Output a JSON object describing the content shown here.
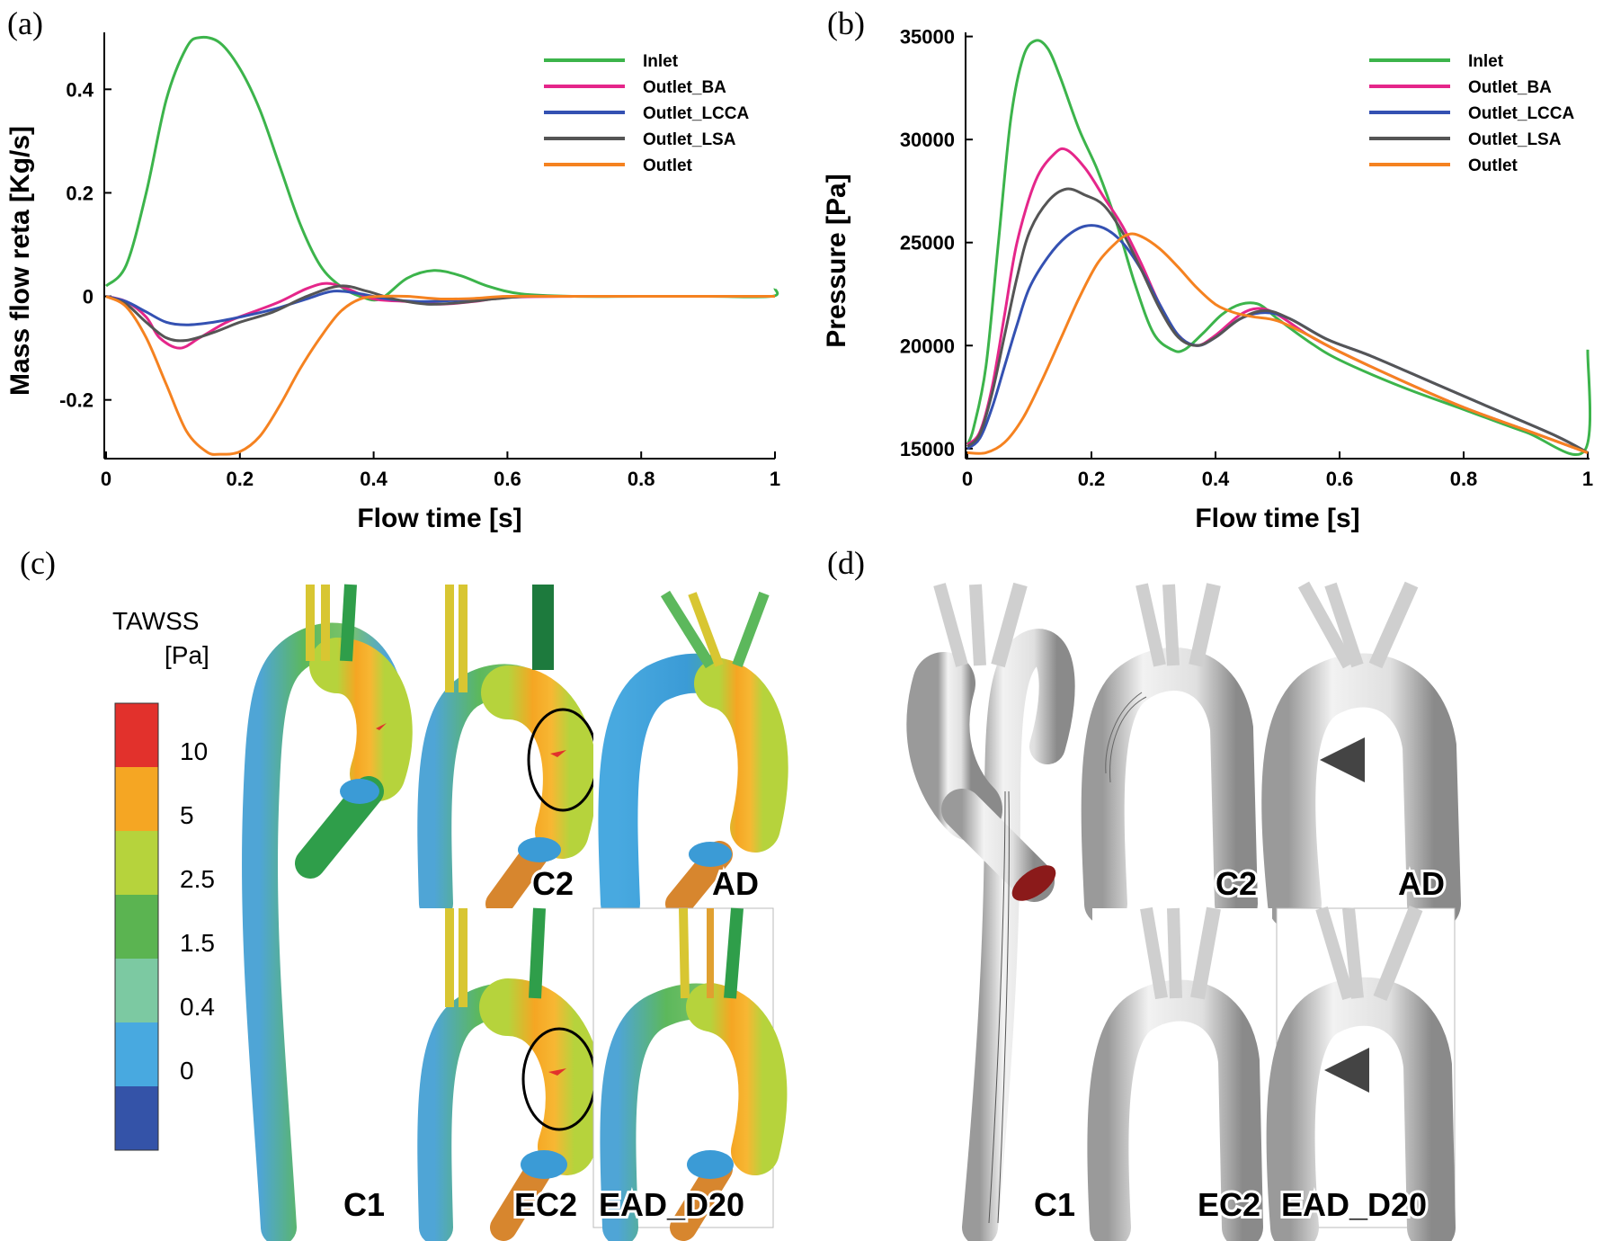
{
  "panels": {
    "a": "(a)",
    "b": "(b)",
    "c": "(c)",
    "d": "(d)"
  },
  "chart_data": [
    {
      "type": "line",
      "xlabel": "Flow time [s]",
      "ylabel": "Mass flow reta [Kg/s]",
      "xlim": [
        0,
        1
      ],
      "ylim": [
        -0.31,
        0.51
      ],
      "xticks": [
        0,
        0.2,
        0.4,
        0.6,
        0.8,
        1
      ],
      "xtick_labels": [
        "0",
        "0.2",
        "0.4",
        "0.6",
        "0.8",
        "1"
      ],
      "yticks": [
        -0.2,
        0,
        0.2,
        0.4
      ],
      "ytick_labels": [
        "-0.2",
        "0",
        "0.2",
        "0.4"
      ],
      "legend": "top-right",
      "series": [
        {
          "name": "Inlet",
          "color": "#3cb44b",
          "x": [
            0,
            0.03,
            0.06,
            0.09,
            0.12,
            0.14,
            0.17,
            0.2,
            0.23,
            0.26,
            0.29,
            0.32,
            0.35,
            0.38,
            0.41,
            0.45,
            0.49,
            0.53,
            0.57,
            0.62,
            0.7,
            0.8,
            0.9,
            0.995,
            1
          ],
          "y": [
            0.02,
            0.06,
            0.2,
            0.38,
            0.48,
            0.5,
            0.49,
            0.44,
            0.36,
            0.25,
            0.14,
            0.06,
            0.02,
            0.0,
            -0.005,
            0.035,
            0.05,
            0.04,
            0.02,
            0.005,
            0,
            0,
            0,
            0,
            0.015
          ]
        },
        {
          "name": "Outlet_BA",
          "color": "#e5268a",
          "x": [
            0,
            0.03,
            0.06,
            0.08,
            0.11,
            0.14,
            0.18,
            0.22,
            0.26,
            0.3,
            0.33,
            0.36,
            0.4,
            0.45,
            0.5,
            0.55,
            0.6,
            0.7,
            0.8,
            0.9,
            1
          ],
          "y": [
            0,
            -0.01,
            -0.04,
            -0.08,
            -0.1,
            -0.08,
            -0.05,
            -0.03,
            -0.01,
            0.015,
            0.025,
            0.015,
            -0.005,
            -0.01,
            -0.015,
            -0.01,
            -0.002,
            0,
            0,
            0,
            0
          ]
        },
        {
          "name": "Outlet_LCCA",
          "color": "#3451b2",
          "x": [
            0,
            0.03,
            0.06,
            0.09,
            0.12,
            0.16,
            0.2,
            0.25,
            0.3,
            0.34,
            0.38,
            0.42,
            0.47,
            0.52,
            0.57,
            0.62,
            0.7,
            0.8,
            0.9,
            1
          ],
          "y": [
            0,
            -0.01,
            -0.03,
            -0.05,
            -0.055,
            -0.05,
            -0.04,
            -0.025,
            -0.005,
            0.01,
            0.005,
            -0.005,
            -0.01,
            -0.008,
            -0.004,
            0,
            0,
            0,
            0,
            0
          ]
        },
        {
          "name": "Outlet_LSA",
          "color": "#555555",
          "x": [
            0,
            0.03,
            0.06,
            0.09,
            0.12,
            0.16,
            0.2,
            0.25,
            0.3,
            0.35,
            0.39,
            0.43,
            0.48,
            0.53,
            0.58,
            0.63,
            0.7,
            0.8,
            0.9,
            1
          ],
          "y": [
            0,
            -0.015,
            -0.05,
            -0.08,
            -0.085,
            -0.07,
            -0.05,
            -0.03,
            0,
            0.02,
            0.01,
            -0.005,
            -0.015,
            -0.012,
            -0.005,
            0,
            0,
            0,
            0,
            0
          ]
        },
        {
          "name": "Outlet",
          "color": "#f58220",
          "x": [
            0,
            0.03,
            0.06,
            0.09,
            0.12,
            0.15,
            0.17,
            0.2,
            0.23,
            0.26,
            0.29,
            0.32,
            0.35,
            0.38,
            0.41,
            0.45,
            0.5,
            0.55,
            0.6,
            0.7,
            0.8,
            0.9,
            1
          ],
          "y": [
            0,
            -0.02,
            -0.08,
            -0.17,
            -0.26,
            -0.3,
            -0.305,
            -0.3,
            -0.27,
            -0.21,
            -0.14,
            -0.08,
            -0.03,
            -0.005,
            0.0,
            0.0,
            -0.005,
            -0.004,
            0,
            0,
            0,
            0,
            0
          ]
        }
      ]
    },
    {
      "type": "line",
      "xlabel": "Flow time [s]",
      "ylabel": "Pressure [Pa]",
      "xlim": [
        0,
        1
      ],
      "ylim": [
        14600,
        35200
      ],
      "xticks": [
        0,
        0.2,
        0.4,
        0.6,
        0.8,
        1
      ],
      "xtick_labels": [
        "0",
        "0.2",
        "0.4",
        "0.6",
        "0.8",
        "1"
      ],
      "yticks": [
        15000,
        20000,
        25000,
        30000,
        35000
      ],
      "ytick_labels": [
        "15000",
        "20000",
        "25000",
        "30000",
        "35000"
      ],
      "legend": "top-right",
      "series": [
        {
          "name": "Inlet",
          "color": "#3cb44b",
          "x": [
            0,
            0.01,
            0.03,
            0.05,
            0.07,
            0.09,
            0.11,
            0.13,
            0.15,
            0.18,
            0.21,
            0.24,
            0.27,
            0.3,
            0.33,
            0.35,
            0.38,
            0.41,
            0.44,
            0.47,
            0.5,
            0.55,
            0.6,
            0.7,
            0.8,
            0.9,
            0.995,
            1
          ],
          "y": [
            15200,
            16000,
            19000,
            25000,
            31000,
            34000,
            34800,
            34400,
            33000,
            30500,
            28500,
            26000,
            23000,
            20600,
            19800,
            19800,
            20600,
            21500,
            22000,
            22000,
            21300,
            20200,
            19300,
            18000,
            16900,
            15800,
            14900,
            19800
          ]
        },
        {
          "name": "Outlet_BA",
          "color": "#e5268a",
          "x": [
            0,
            0.02,
            0.04,
            0.06,
            0.08,
            0.11,
            0.14,
            0.16,
            0.19,
            0.22,
            0.25,
            0.28,
            0.31,
            0.34,
            0.37,
            0.4,
            0.44,
            0.47,
            0.5,
            0.55,
            0.6,
            0.7,
            0.8,
            0.9,
            1
          ],
          "y": [
            15200,
            15800,
            18000,
            21500,
            25000,
            28000,
            29300,
            29500,
            28600,
            27200,
            25800,
            24000,
            22000,
            20500,
            20000,
            20500,
            21500,
            21800,
            21500,
            20500,
            19700,
            18300,
            17000,
            15900,
            14800
          ]
        },
        {
          "name": "Outlet_LCCA",
          "color": "#3451b2",
          "x": [
            0,
            0.02,
            0.04,
            0.06,
            0.08,
            0.1,
            0.13,
            0.16,
            0.19,
            0.22,
            0.25,
            0.28,
            0.31,
            0.34,
            0.37,
            0.4,
            0.44,
            0.48,
            0.52,
            0.58,
            0.65,
            0.75,
            0.85,
            0.95,
            1
          ],
          "y": [
            15000,
            15500,
            17000,
            19000,
            21000,
            22800,
            24300,
            25300,
            25800,
            25700,
            25000,
            23700,
            22000,
            20500,
            20000,
            20400,
            21300,
            21600,
            21300,
            20300,
            19500,
            18200,
            16900,
            15600,
            14800
          ]
        },
        {
          "name": "Outlet_LSA",
          "color": "#555555",
          "x": [
            0,
            0.02,
            0.04,
            0.06,
            0.08,
            0.1,
            0.13,
            0.16,
            0.19,
            0.22,
            0.25,
            0.28,
            0.31,
            0.34,
            0.37,
            0.4,
            0.44,
            0.48,
            0.52,
            0.58,
            0.65,
            0.75,
            0.85,
            0.95,
            1
          ],
          "y": [
            15100,
            15700,
            17700,
            20500,
            23300,
            25500,
            27000,
            27600,
            27300,
            26800,
            25500,
            23700,
            21800,
            20400,
            20000,
            20400,
            21300,
            21700,
            21300,
            20300,
            19500,
            18200,
            16900,
            15600,
            14800
          ]
        },
        {
          "name": "Outlet",
          "color": "#f58220",
          "x": [
            0,
            0.03,
            0.06,
            0.09,
            0.12,
            0.15,
            0.18,
            0.21,
            0.24,
            0.26,
            0.28,
            0.31,
            0.34,
            0.37,
            0.4,
            0.43,
            0.46,
            0.5,
            0.55,
            0.6,
            0.7,
            0.8,
            0.9,
            1
          ],
          "y": [
            14800,
            14800,
            15300,
            16500,
            18300,
            20300,
            22300,
            24000,
            25000,
            25400,
            25300,
            24700,
            23800,
            22800,
            22000,
            21600,
            21400,
            21200,
            20500,
            19700,
            18300,
            17000,
            15900,
            14800
          ]
        }
      ]
    }
  ],
  "colorbar": {
    "title_line1": "TAWSS",
    "title_line2": "[Pa]",
    "labels": [
      "10",
      "5",
      "2.5",
      "1.5",
      "0.4",
      "0"
    ],
    "colors": [
      "#e2312c",
      "#f5a623",
      "#b6d33c",
      "#5bb451",
      "#7cc9a2",
      "#48a9e0",
      "#3453a8"
    ]
  },
  "model_labels_c": {
    "c1": "C1",
    "c2": "C2",
    "ad": "AD",
    "ec2": "EC2",
    "ead": "EAD_D20"
  },
  "model_labels_d": {
    "c1": "C1",
    "c2": "C2",
    "ad": "AD",
    "ec2": "EC2",
    "ead": "EAD_D20"
  }
}
